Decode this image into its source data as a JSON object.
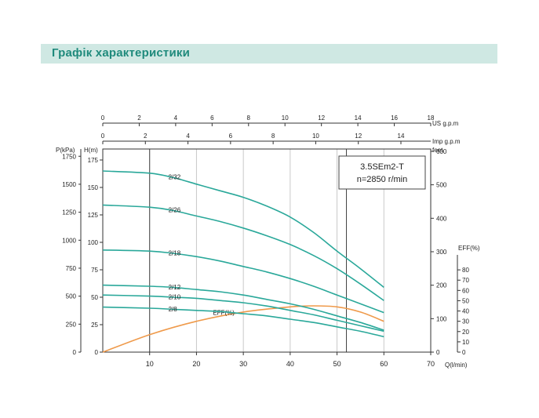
{
  "page": {
    "title": "Графік характеристики"
  },
  "chart_data": {
    "type": "line",
    "model": "3.5SEm2-T",
    "speed": "n=2850 r/min",
    "x_axis": {
      "label": "Q(l/min)",
      "range": [
        0,
        70
      ],
      "ticks": [
        10,
        20,
        30,
        40,
        50,
        60,
        70
      ]
    },
    "top_axis_us": {
      "unit": "US  g.p.m",
      "range": [
        0,
        18
      ],
      "ticks": [
        0,
        2,
        4,
        6,
        8,
        10,
        12,
        14,
        16,
        18
      ]
    },
    "top_axis_imp": {
      "unit": "Imp  g.p.m",
      "range": [
        0,
        15.4
      ],
      "ticks": [
        0,
        2,
        4,
        6,
        8,
        10,
        12,
        14
      ]
    },
    "y_axis_pressure": {
      "label": "P(kPa)",
      "ticks": [
        0,
        250,
        500,
        750,
        1000,
        1250,
        1500,
        1750
      ]
    },
    "y_axis_head": {
      "label": "H(m)",
      "range": [
        0,
        185
      ],
      "ticks": [
        0,
        25,
        50,
        75,
        100,
        125,
        150,
        175
      ]
    },
    "y_axis_feet": {
      "label": "feet",
      "ticks": [
        0,
        100,
        200,
        300,
        400,
        500,
        600
      ]
    },
    "y_axis_eff": {
      "label": "EFF(%)",
      "range": [
        0,
        90
      ],
      "ticks": [
        0,
        10,
        20,
        30,
        40,
        50,
        60,
        70,
        80
      ]
    },
    "reference_lines_x": [
      10,
      52
    ],
    "series": [
      {
        "name": "2/32",
        "x": [
          0,
          10,
          15,
          20,
          25,
          30,
          35,
          40,
          45,
          50,
          55,
          60
        ],
        "y": [
          165,
          163,
          159,
          153,
          147,
          141,
          133,
          123,
          109,
          92,
          76,
          59
        ]
      },
      {
        "name": "2/26",
        "x": [
          0,
          10,
          15,
          20,
          25,
          30,
          35,
          40,
          45,
          50,
          55,
          60
        ],
        "y": [
          134,
          132,
          129,
          124,
          119,
          113,
          106,
          98,
          88,
          76,
          62,
          47
        ]
      },
      {
        "name": "2/18",
        "x": [
          0,
          10,
          15,
          20,
          25,
          30,
          35,
          40,
          45,
          50,
          55,
          60
        ],
        "y": [
          93,
          92,
          90,
          87,
          83,
          78,
          73,
          67,
          60,
          52,
          44,
          36
        ]
      },
      {
        "name": "2/12",
        "x": [
          0,
          10,
          15,
          20,
          25,
          30,
          35,
          40,
          45,
          50,
          55,
          60
        ],
        "y": [
          61,
          60,
          59,
          57,
          55,
          52,
          48,
          44,
          39,
          33,
          27,
          20
        ]
      },
      {
        "name": "2/10",
        "x": [
          0,
          10,
          15,
          20,
          25,
          30,
          35,
          40,
          45,
          50,
          55,
          60
        ],
        "y": [
          52,
          51,
          50,
          49,
          47,
          45,
          42,
          38,
          34,
          29,
          24,
          19
        ]
      },
      {
        "name": "2/8",
        "x": [
          0,
          10,
          15,
          20,
          25,
          30,
          35,
          40,
          45,
          50,
          55,
          60
        ],
        "y": [
          41,
          40,
          39,
          38,
          37,
          35,
          33,
          30,
          27,
          23,
          19,
          14
        ]
      }
    ],
    "efficiency": {
      "name": "EFF(%)",
      "x": [
        0,
        10,
        20,
        30,
        40,
        45,
        50,
        55,
        60
      ],
      "y": [
        0,
        17,
        30,
        39,
        44,
        45,
        44,
        39,
        30
      ]
    }
  }
}
